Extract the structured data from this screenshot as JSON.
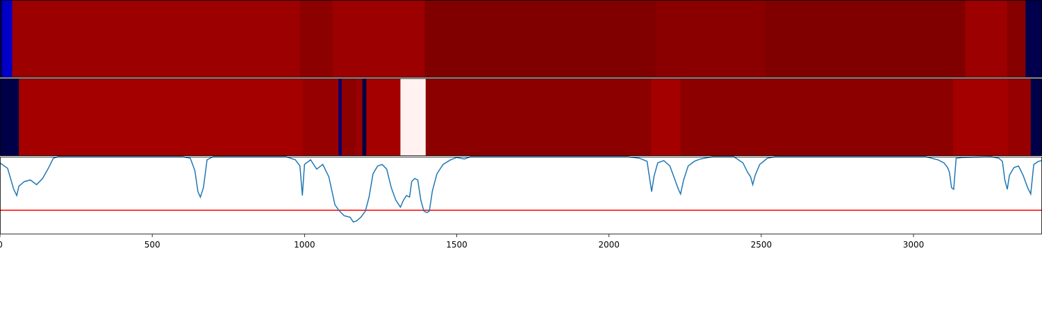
{
  "colors": {
    "line": "#1f77b4",
    "threshold": "#ff0000",
    "axis": "#000000"
  },
  "chart_data": [
    {
      "type": "heatmap",
      "row": "top",
      "xlim": [
        0,
        3422
      ],
      "segments": [
        {
          "x0": 0,
          "x1": 8,
          "color": "#00006a"
        },
        {
          "x0": 8,
          "x1": 40,
          "color": "#0000c8"
        },
        {
          "x0": 40,
          "x1": 985,
          "color": "#9c0000"
        },
        {
          "x0": 985,
          "x1": 1093,
          "color": "#8c0000"
        },
        {
          "x0": 1093,
          "x1": 1395,
          "color": "#9c0000"
        },
        {
          "x0": 1395,
          "x1": 2153,
          "color": "#800000"
        },
        {
          "x0": 2153,
          "x1": 2512,
          "color": "#8a0000"
        },
        {
          "x0": 2512,
          "x1": 3170,
          "color": "#800000"
        },
        {
          "x0": 3170,
          "x1": 3308,
          "color": "#9c0000"
        },
        {
          "x0": 3308,
          "x1": 3368,
          "color": "#860000"
        },
        {
          "x0": 3368,
          "x1": 3422,
          "color": "#00004d"
        }
      ]
    },
    {
      "type": "heatmap",
      "row": "middle",
      "xlim": [
        0,
        3422
      ],
      "segments": [
        {
          "x0": 0,
          "x1": 62,
          "color": "#000048"
        },
        {
          "x0": 62,
          "x1": 655,
          "color": "#a40000"
        },
        {
          "x0": 655,
          "x1": 995,
          "color": "#a40000"
        },
        {
          "x0": 995,
          "x1": 1112,
          "color": "#960000"
        },
        {
          "x0": 1112,
          "x1": 1122,
          "color": "#000070"
        },
        {
          "x0": 1122,
          "x1": 1170,
          "color": "#8c0000"
        },
        {
          "x0": 1170,
          "x1": 1190,
          "color": "#9a0000"
        },
        {
          "x0": 1190,
          "x1": 1203,
          "color": "#000040"
        },
        {
          "x0": 1203,
          "x1": 1315,
          "color": "#a40000"
        },
        {
          "x0": 1315,
          "x1": 1398,
          "color": "#fff2f0"
        },
        {
          "x0": 1398,
          "x1": 2138,
          "color": "#8c0000"
        },
        {
          "x0": 2138,
          "x1": 2235,
          "color": "#a40000"
        },
        {
          "x0": 2235,
          "x1": 3130,
          "color": "#8c0000"
        },
        {
          "x0": 3130,
          "x1": 3310,
          "color": "#a40000"
        },
        {
          "x0": 3310,
          "x1": 3385,
          "color": "#960000"
        },
        {
          "x0": 3385,
          "x1": 3422,
          "color": "#000048"
        }
      ]
    },
    {
      "type": "line",
      "row": "bottom",
      "xlim": [
        0,
        3422
      ],
      "ylim": [
        0,
        1
      ],
      "x_ticks": [
        0,
        500,
        1000,
        1500,
        2000,
        2500,
        3000
      ],
      "x_tick_labels": [
        "0",
        "500",
        "1000",
        "1500",
        "2000",
        "2500",
        "3000"
      ],
      "threshold": 0.31,
      "series": [
        {
          "points": [
            [
              0,
              0.92
            ],
            [
              25,
              0.85
            ],
            [
              45,
              0.58
            ],
            [
              55,
              0.5
            ],
            [
              62,
              0.62
            ],
            [
              80,
              0.68
            ],
            [
              100,
              0.7
            ],
            [
              120,
              0.64
            ],
            [
              140,
              0.72
            ],
            [
              160,
              0.86
            ],
            [
              175,
              0.98
            ],
            [
              190,
              1.0
            ],
            [
              600,
              1.0
            ],
            [
              625,
              0.98
            ],
            [
              640,
              0.82
            ],
            [
              650,
              0.55
            ],
            [
              658,
              0.48
            ],
            [
              668,
              0.6
            ],
            [
              680,
              0.96
            ],
            [
              700,
              1.0
            ],
            [
              940,
              1.0
            ],
            [
              970,
              0.96
            ],
            [
              985,
              0.88
            ],
            [
              993,
              0.5
            ],
            [
              1000,
              0.9
            ],
            [
              1020,
              0.96
            ],
            [
              1040,
              0.84
            ],
            [
              1060,
              0.9
            ],
            [
              1080,
              0.74
            ],
            [
              1100,
              0.38
            ],
            [
              1115,
              0.3
            ],
            [
              1130,
              0.24
            ],
            [
              1150,
              0.22
            ],
            [
              1160,
              0.16
            ],
            [
              1170,
              0.17
            ],
            [
              1185,
              0.22
            ],
            [
              1200,
              0.3
            ],
            [
              1212,
              0.48
            ],
            [
              1225,
              0.78
            ],
            [
              1240,
              0.88
            ],
            [
              1255,
              0.9
            ],
            [
              1270,
              0.84
            ],
            [
              1285,
              0.6
            ],
            [
              1300,
              0.44
            ],
            [
              1315,
              0.35
            ],
            [
              1325,
              0.44
            ],
            [
              1335,
              0.5
            ],
            [
              1345,
              0.48
            ],
            [
              1352,
              0.68
            ],
            [
              1362,
              0.72
            ],
            [
              1372,
              0.7
            ],
            [
              1382,
              0.44
            ],
            [
              1392,
              0.3
            ],
            [
              1402,
              0.28
            ],
            [
              1410,
              0.3
            ],
            [
              1420,
              0.56
            ],
            [
              1435,
              0.78
            ],
            [
              1455,
              0.9
            ],
            [
              1480,
              0.96
            ],
            [
              1500,
              0.99
            ],
            [
              1525,
              0.97
            ],
            [
              1545,
              1.0
            ],
            [
              2060,
              1.0
            ],
            [
              2100,
              0.98
            ],
            [
              2125,
              0.94
            ],
            [
              2135,
              0.68
            ],
            [
              2140,
              0.55
            ],
            [
              2148,
              0.75
            ],
            [
              2160,
              0.92
            ],
            [
              2180,
              0.95
            ],
            [
              2200,
              0.88
            ],
            [
              2215,
              0.72
            ],
            [
              2228,
              0.58
            ],
            [
              2235,
              0.52
            ],
            [
              2245,
              0.7
            ],
            [
              2260,
              0.88
            ],
            [
              2280,
              0.94
            ],
            [
              2300,
              0.97
            ],
            [
              2340,
              1.0
            ],
            [
              2410,
              1.0
            ],
            [
              2440,
              0.92
            ],
            [
              2455,
              0.8
            ],
            [
              2465,
              0.74
            ],
            [
              2472,
              0.64
            ],
            [
              2480,
              0.76
            ],
            [
              2495,
              0.9
            ],
            [
              2520,
              0.98
            ],
            [
              2545,
              1.0
            ],
            [
              3040,
              1.0
            ],
            [
              3080,
              0.96
            ],
            [
              3100,
              0.92
            ],
            [
              3112,
              0.86
            ],
            [
              3118,
              0.8
            ],
            [
              3125,
              0.6
            ],
            [
              3132,
              0.58
            ],
            [
              3140,
              0.98
            ],
            [
              3160,
              0.99
            ],
            [
              3255,
              1.0
            ],
            [
              3280,
              0.98
            ],
            [
              3292,
              0.94
            ],
            [
              3300,
              0.7
            ],
            [
              3308,
              0.58
            ],
            [
              3315,
              0.76
            ],
            [
              3330,
              0.86
            ],
            [
              3345,
              0.88
            ],
            [
              3360,
              0.76
            ],
            [
              3375,
              0.6
            ],
            [
              3385,
              0.52
            ],
            [
              3395,
              0.9
            ],
            [
              3410,
              0.94
            ],
            [
              3422,
              0.95
            ]
          ]
        }
      ]
    }
  ]
}
